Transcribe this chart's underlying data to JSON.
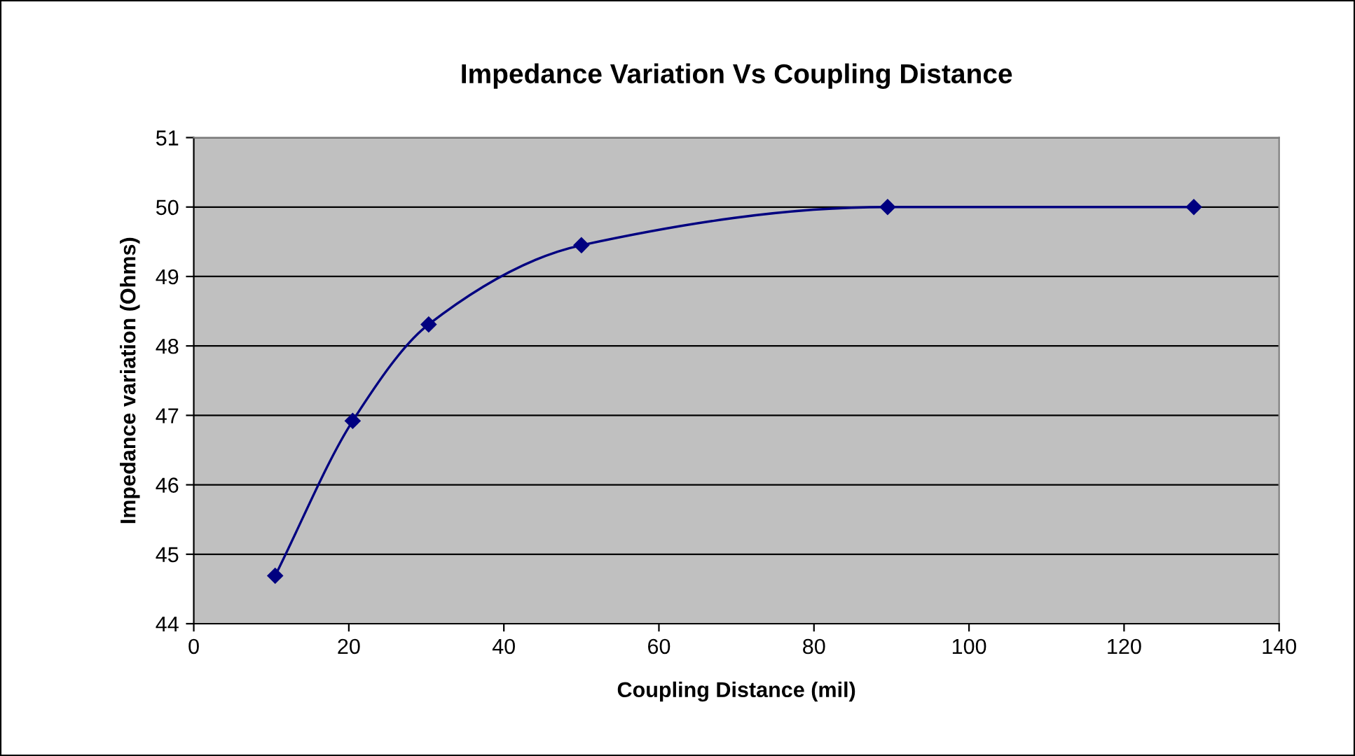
{
  "chart_data": {
    "type": "line",
    "title": "Impedance Variation Vs Coupling Distance",
    "xlabel": "Coupling Distance (mil)",
    "ylabel": "Impedance variation (Ohms)",
    "series": [
      {
        "color": "#000080",
        "x": [
          10.5,
          20.5,
          30.3,
          50,
          89.5,
          129
        ],
        "values": [
          44.69,
          46.92,
          48.31,
          49.45,
          50.0,
          50.0
        ]
      }
    ],
    "xlim": [
      0,
      140
    ],
    "xticks": [
      0,
      20,
      40,
      60,
      80,
      100,
      120,
      140
    ],
    "ylim": [
      44,
      51
    ],
    "yticks": [
      44,
      45,
      46,
      47,
      48,
      49,
      50,
      51
    ],
    "grid": "y",
    "marker": "diamond",
    "line_style": "solid",
    "legend": false
  }
}
